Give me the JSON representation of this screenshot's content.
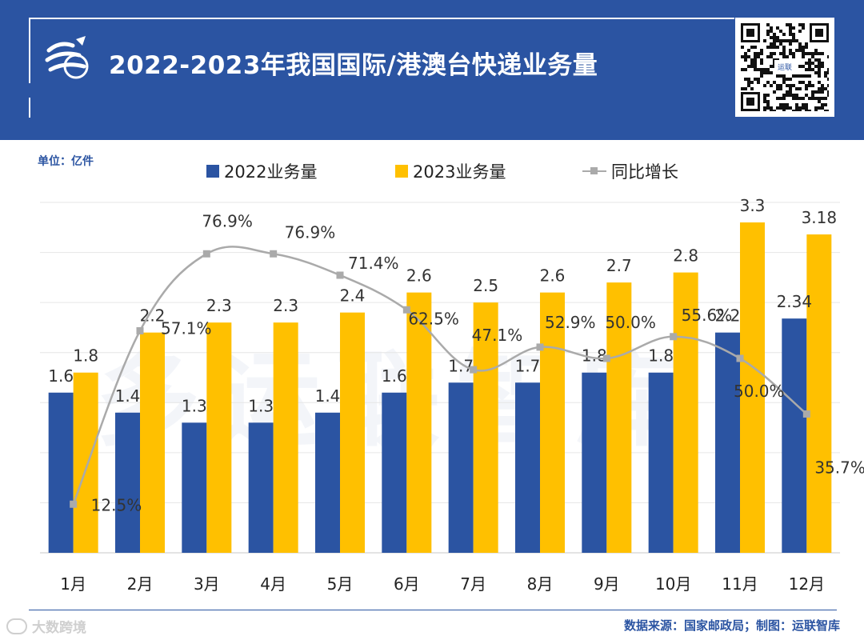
{
  "header": {
    "title": "2022-2023年我国国际/港澳台快递业务量",
    "qr_label": "运联"
  },
  "unit_label": "单位：亿件",
  "watermark": "多运联智库",
  "legend": {
    "series_2022": "2022业务量",
    "series_2023": "2023业务量",
    "growth": "同比增长"
  },
  "colors": {
    "brand": "#2B54A2",
    "series_2022": "#2B54A2",
    "series_2023": "#FFC000",
    "growth_line": "#AAAAAA"
  },
  "chart_data": {
    "type": "bar",
    "title": "2022-2023年我国国际/港澳台快递业务量",
    "categories": [
      "1月",
      "2月",
      "3月",
      "4月",
      "5月",
      "6月",
      "7月",
      "8月",
      "9月",
      "10月",
      "11月",
      "12月"
    ],
    "series": [
      {
        "name": "2022业务量",
        "values": [
          1.6,
          1.4,
          1.3,
          1.3,
          1.4,
          1.6,
          1.7,
          1.7,
          1.8,
          1.8,
          2.2,
          2.34
        ],
        "labels": [
          "1.6",
          "1.4",
          "1.3",
          "1.3",
          "1.4",
          "1.6",
          "1.7",
          "1.7",
          "1.8",
          "1.8",
          "2.2",
          "2.34"
        ]
      },
      {
        "name": "2023业务量",
        "values": [
          1.8,
          2.2,
          2.3,
          2.3,
          2.4,
          2.6,
          2.5,
          2.6,
          2.7,
          2.8,
          3.3,
          3.18
        ],
        "labels": [
          "1.8",
          "2.2",
          "2.3",
          "2.3",
          "2.4",
          "2.6",
          "2.5",
          "2.6",
          "2.7",
          "2.8",
          "3.3",
          "3.18"
        ]
      }
    ],
    "line_series": {
      "name": "同比增长",
      "values": [
        12.5,
        57.1,
        76.9,
        76.9,
        71.4,
        62.5,
        47.1,
        52.9,
        50.0,
        55.6,
        50.0,
        35.7
      ],
      "labels": [
        "12.5%",
        "57.1%",
        "76.9%",
        "76.9%",
        "71.4%",
        "62.5%",
        "47.1%",
        "52.9%",
        "50.0%",
        "55.6%",
        "50.0%",
        "35.7%"
      ],
      "ylim": [
        0,
        100
      ]
    },
    "ylabel": "亿件",
    "ylim": [
      0,
      3.5
    ],
    "grid": true,
    "legend": "top"
  },
  "footer": {
    "brand": "大数跨境",
    "source": "数据来源：国家邮政局；制图：运联智库"
  }
}
